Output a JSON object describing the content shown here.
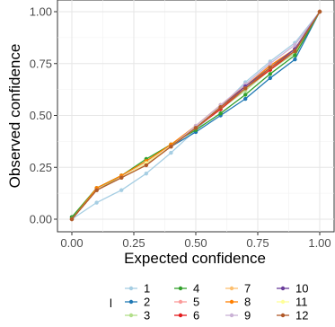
{
  "chart_data": {
    "type": "line",
    "title": "",
    "xlabel": "Expected confidence",
    "ylabel": "Observed confidence",
    "xlim": [
      0,
      1
    ],
    "ylim": [
      0,
      1
    ],
    "x_ticks": [
      "0.00",
      "0.25",
      "0.50",
      "0.75",
      "1.00"
    ],
    "y_ticks": [
      "0.00",
      "0.25",
      "0.50",
      "0.75",
      "1.00"
    ],
    "grid": true,
    "legend": {
      "title": "l",
      "placement": "bottom"
    },
    "x": [
      0,
      0.1,
      0.2,
      0.3,
      0.4,
      0.5,
      0.6,
      0.7,
      0.8,
      0.9,
      1.0
    ],
    "series": [
      {
        "name": "1",
        "color": "#a6cee3",
        "values": [
          0.0,
          0.08,
          0.14,
          0.22,
          0.32,
          0.43,
          0.54,
          0.66,
          0.76,
          0.85,
          1.0
        ]
      },
      {
        "name": "2",
        "color": "#1f78b4",
        "values": [
          0.01,
          0.14,
          0.2,
          0.27,
          0.35,
          0.42,
          0.5,
          0.58,
          0.68,
          0.77,
          1.0
        ]
      },
      {
        "name": "3",
        "color": "#b2df8a",
        "values": [
          0.0,
          0.14,
          0.21,
          0.28,
          0.36,
          0.44,
          0.53,
          0.62,
          0.72,
          0.8,
          1.0
        ]
      },
      {
        "name": "4",
        "color": "#33a02c",
        "values": [
          0.01,
          0.15,
          0.21,
          0.29,
          0.36,
          0.43,
          0.51,
          0.6,
          0.7,
          0.79,
          1.0
        ]
      },
      {
        "name": "5",
        "color": "#fb9a99",
        "values": [
          0.0,
          0.14,
          0.2,
          0.27,
          0.35,
          0.44,
          0.54,
          0.64,
          0.74,
          0.82,
          1.0
        ]
      },
      {
        "name": "6",
        "color": "#e31a1c",
        "values": [
          0.0,
          0.14,
          0.2,
          0.27,
          0.35,
          0.44,
          0.53,
          0.63,
          0.72,
          0.81,
          1.0
        ]
      },
      {
        "name": "7",
        "color": "#fdbf6f",
        "values": [
          0.0,
          0.14,
          0.2,
          0.27,
          0.35,
          0.44,
          0.54,
          0.63,
          0.73,
          0.82,
          1.0
        ]
      },
      {
        "name": "8",
        "color": "#ff7f00",
        "values": [
          0.0,
          0.15,
          0.21,
          0.28,
          0.36,
          0.45,
          0.55,
          0.64,
          0.74,
          0.82,
          1.0
        ]
      },
      {
        "name": "9",
        "color": "#cab2d6",
        "values": [
          0.0,
          0.14,
          0.2,
          0.27,
          0.35,
          0.45,
          0.55,
          0.65,
          0.75,
          0.84,
          1.0
        ]
      },
      {
        "name": "10",
        "color": "#6a3d9a",
        "values": [
          0.0,
          0.14,
          0.2,
          0.27,
          0.35,
          0.44,
          0.54,
          0.64,
          0.73,
          0.82,
          1.0
        ]
      },
      {
        "name": "11",
        "color": "#ffff99",
        "values": [
          0.0,
          0.14,
          0.2,
          0.27,
          0.35,
          0.44,
          0.54,
          0.63,
          0.73,
          0.81,
          1.0
        ]
      },
      {
        "name": "12",
        "color": "#b15928",
        "values": [
          0.0,
          0.14,
          0.2,
          0.26,
          0.35,
          0.44,
          0.54,
          0.63,
          0.73,
          0.81,
          1.0
        ]
      }
    ]
  }
}
